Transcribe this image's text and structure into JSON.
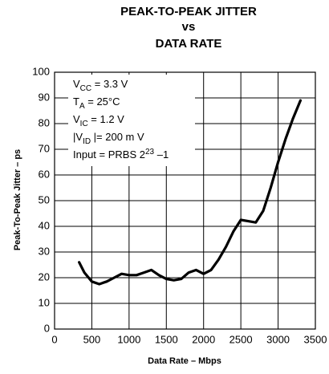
{
  "chart_data": {
    "type": "line",
    "title": [
      "PEAK-TO-PEAK JITTER",
      "vs",
      "DATA RATE"
    ],
    "x_label": "Data Rate – Mbps",
    "y_label": "Peak-To-Peak Jitter – ps",
    "annotations": [
      [
        {
          "text": "V"
        },
        {
          "text": "CC",
          "sub": true
        },
        {
          "text": " = 3.3 V"
        }
      ],
      [
        {
          "text": "T"
        },
        {
          "text": "A",
          "sub": true
        },
        {
          "text": " = 25°C"
        }
      ],
      [
        {
          "text": "V"
        },
        {
          "text": "IC",
          "sub": true
        },
        {
          "text": " = 1.2 V"
        }
      ],
      [
        {
          "text": "|V"
        },
        {
          "text": "ID",
          "sub": true
        },
        {
          "text": " |= 200 m V"
        }
      ],
      [
        {
          "text": "Input = PRBS 2"
        },
        {
          "text": "23",
          "sup": true
        },
        {
          "text": " –1"
        }
      ]
    ],
    "x": [
      330,
      400,
      500,
      600,
      700,
      800,
      900,
      1000,
      1100,
      1200,
      1300,
      1400,
      1500,
      1600,
      1700,
      1800,
      1900,
      2000,
      2100,
      2200,
      2300,
      2400,
      2500,
      2600,
      2700,
      2800,
      2900,
      3000,
      3100,
      3200,
      3300
    ],
    "series": [
      {
        "name": "Jitter",
        "color": "#000000",
        "values": [
          26,
          22,
          18.5,
          17.5,
          18.5,
          20,
          21.5,
          21,
          21,
          22,
          23,
          21,
          19.5,
          19,
          19.5,
          22,
          23,
          21.5,
          23,
          27,
          32,
          38,
          42.5,
          42,
          41.5,
          46,
          55,
          65,
          74,
          82,
          89
        ]
      }
    ],
    "xlim": [
      0,
      3500
    ],
    "xticks": [
      0,
      500,
      1000,
      1500,
      2000,
      2500,
      3000,
      3500
    ],
    "ylim": [
      0,
      100
    ],
    "yticks": [
      0,
      10,
      20,
      30,
      40,
      50,
      60,
      70,
      80,
      90,
      100
    ],
    "grid": true
  }
}
